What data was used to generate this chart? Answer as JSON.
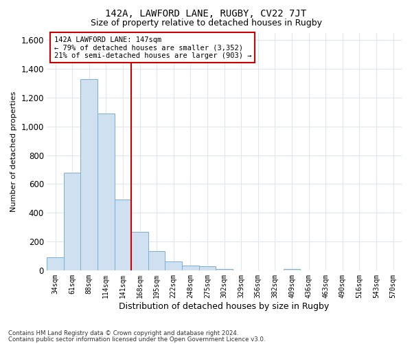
{
  "title": "142A, LAWFORD LANE, RUGBY, CV22 7JT",
  "subtitle": "Size of property relative to detached houses in Rugby",
  "xlabel": "Distribution of detached houses by size in Rugby",
  "ylabel": "Number of detached properties",
  "bar_color": "#cfe0f0",
  "bar_edge_color": "#7bafd4",
  "vline_color": "#cc0000",
  "vline_x": 4.5,
  "categories": [
    "34sqm",
    "61sqm",
    "88sqm",
    "114sqm",
    "141sqm",
    "168sqm",
    "195sqm",
    "222sqm",
    "248sqm",
    "275sqm",
    "302sqm",
    "329sqm",
    "356sqm",
    "382sqm",
    "409sqm",
    "436sqm",
    "463sqm",
    "490sqm",
    "516sqm",
    "543sqm",
    "570sqm"
  ],
  "values": [
    90,
    680,
    1330,
    1090,
    490,
    270,
    135,
    65,
    35,
    30,
    12,
    0,
    0,
    0,
    12,
    0,
    0,
    0,
    0,
    0,
    0
  ],
  "ylim": [
    0,
    1650
  ],
  "yticks": [
    0,
    200,
    400,
    600,
    800,
    1000,
    1200,
    1400,
    1600
  ],
  "annotation_text": "142A LAWFORD LANE: 147sqm\n← 79% of detached houses are smaller (3,352)\n21% of semi-detached houses are larger (903) →",
  "annotation_box_color": "#ffffff",
  "annotation_box_edge": "#cc0000",
  "footer1": "Contains HM Land Registry data © Crown copyright and database right 2024.",
  "footer2": "Contains public sector information licensed under the Open Government Licence v3.0.",
  "fig_background": "#ffffff",
  "plot_background": "#ffffff",
  "grid_color": "#dde8f0"
}
